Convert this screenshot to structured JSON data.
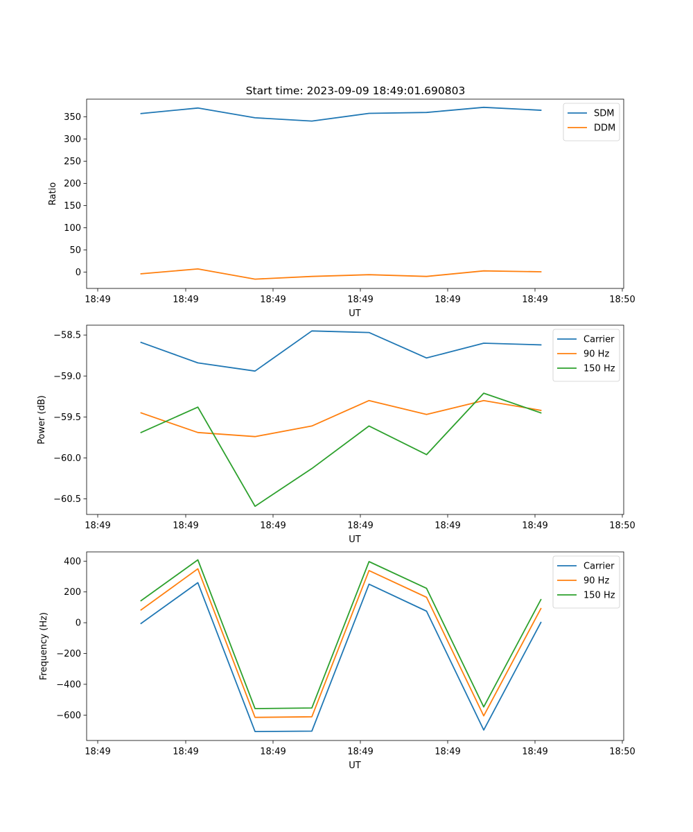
{
  "figure_title": "Start time: 2023-09-09 18:49:01.690803",
  "chart_data": [
    {
      "type": "line",
      "id": "ratio",
      "title": "Start time: 2023-09-09 18:49:01.690803",
      "xlabel": "UT",
      "ylabel": "Ratio",
      "x_tick_labels": [
        "18:49",
        "18:49",
        "18:49",
        "18:49",
        "18:49",
        "18:49",
        "18:50"
      ],
      "y_ticks": [
        0,
        50,
        100,
        150,
        200,
        250,
        300,
        350
      ],
      "y_tick_labels": [
        "0",
        "50",
        "100",
        "150",
        "200",
        "250",
        "300",
        "350"
      ],
      "ylim": [
        -37,
        390
      ],
      "x": [
        1,
        2,
        3,
        4,
        5,
        6,
        7,
        8
      ],
      "legend_position": "upper right",
      "series": [
        {
          "name": "SDM",
          "color": "#1f77b4",
          "values": [
            357.5,
            370,
            348,
            340.5,
            358,
            360,
            371.5,
            365
          ]
        },
        {
          "name": "DDM",
          "color": "#ff7f0e",
          "values": [
            -4,
            7,
            -16,
            -10,
            -6,
            -10,
            2.5,
            0.5
          ]
        }
      ]
    },
    {
      "type": "line",
      "id": "power",
      "xlabel": "UT",
      "ylabel": "Power (dB)",
      "x_tick_labels": [
        "18:49",
        "18:49",
        "18:49",
        "18:49",
        "18:49",
        "18:49",
        "18:50"
      ],
      "y_ticks": [
        -58.5,
        -59.0,
        -59.5,
        -60.0,
        -60.5
      ],
      "y_tick_labels": [
        "−58.5",
        "−59.0",
        "−59.5",
        "−60.0",
        "−60.5"
      ],
      "ylim": [
        -60.69,
        -58.38
      ],
      "x": [
        1,
        2,
        3,
        4,
        5,
        6,
        7,
        8
      ],
      "legend_position": "upper right",
      "series": [
        {
          "name": "Carrier",
          "color": "#1f77b4",
          "values": [
            -58.59,
            -58.84,
            -58.94,
            -58.45,
            -58.47,
            -58.78,
            -58.6,
            -58.62
          ]
        },
        {
          "name": "90 Hz",
          "color": "#ff7f0e",
          "values": [
            -59.45,
            -59.69,
            -59.74,
            -59.61,
            -59.3,
            -59.47,
            -59.3,
            -59.42
          ]
        },
        {
          "name": "150 Hz",
          "color": "#2ca02c",
          "values": [
            -59.69,
            -59.38,
            -60.59,
            -60.13,
            -59.61,
            -59.96,
            -59.21,
            -59.45
          ]
        }
      ]
    },
    {
      "type": "line",
      "id": "frequency",
      "xlabel": "UT",
      "ylabel": "Frequency (Hz)",
      "x_tick_labels": [
        "18:49",
        "18:49",
        "18:49",
        "18:49",
        "18:49",
        "18:49",
        "18:50"
      ],
      "y_ticks": [
        400,
        200,
        0,
        -200,
        -400,
        -600
      ],
      "y_tick_labels": [
        "400",
        "200",
        "0",
        "−200",
        "−400",
        "−600"
      ],
      "ylim": [
        -765,
        460
      ],
      "x": [
        1,
        2,
        3,
        4,
        5,
        6,
        7,
        8
      ],
      "legend_position": "upper right",
      "series": [
        {
          "name": "Carrier",
          "color": "#1f77b4",
          "values": [
            -5,
            260,
            -707,
            -704,
            250,
            75,
            -697,
            2
          ]
        },
        {
          "name": "90 Hz",
          "color": "#ff7f0e",
          "values": [
            83,
            350,
            -615,
            -611,
            339,
            165,
            -605,
            92
          ]
        },
        {
          "name": "150 Hz",
          "color": "#2ca02c",
          "values": [
            143,
            408,
            -558,
            -554,
            397,
            223,
            -547,
            150
          ]
        }
      ]
    }
  ]
}
